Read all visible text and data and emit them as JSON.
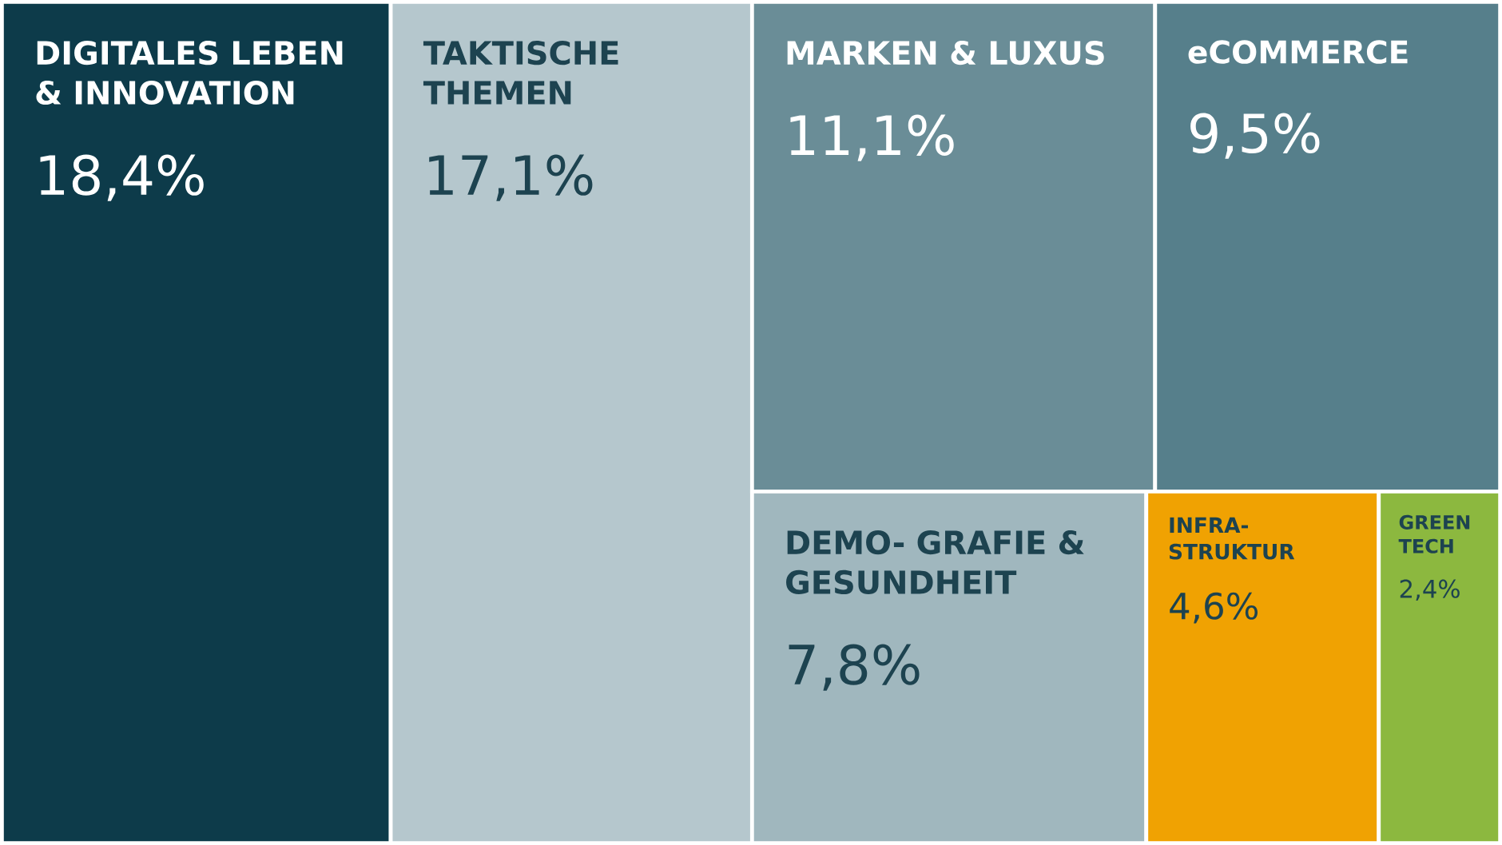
{
  "chart_data": {
    "type": "other",
    "categories": [
      "DIGITALES LEBEN & INNOVATION",
      "TAKTISCHE THEMEN",
      "MARKEN & LUXUS",
      "eCOMMERCE",
      "DEMO- GRAFIE & GESUNDHEIT",
      "INFRA- STRUKTUR",
      "GREEN TECH"
    ],
    "values": [
      18.4,
      17.1,
      11.1,
      9.5,
      7.8,
      4.6,
      2.4
    ],
    "value_labels": [
      "18,4%",
      "17,1%",
      "11,1%",
      "9,5%",
      "7,8%",
      "4,6%",
      "2,4%"
    ],
    "colors": [
      "#0d3b4a",
      "#b5c7cd",
      "#6a8d97",
      "#567f8b",
      "#a0b7be",
      "#f0a202",
      "#8cb83f"
    ]
  }
}
